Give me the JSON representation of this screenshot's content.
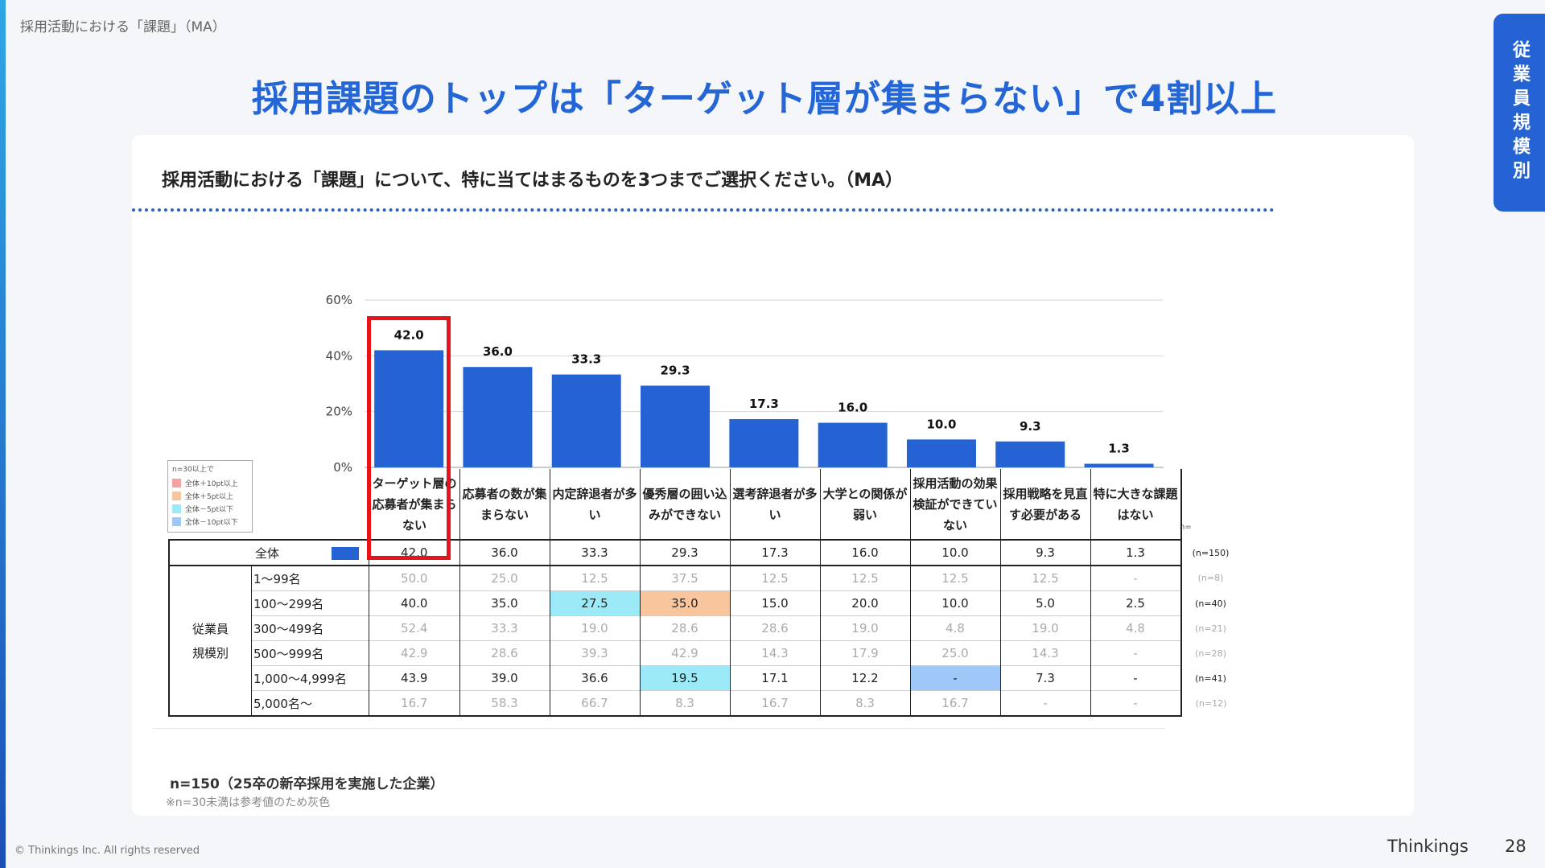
{
  "breadcrumb": "採用活動における「課題」（MA）",
  "title": "採用課題のトップは「ターゲット層が集まらない」で4割以上",
  "side_tab": "従業員規模別",
  "question": "採用活動における「課題」について、特に当てはまるものを3つまでご選択ください。（MA）",
  "legend": {
    "title": "n=30以上で",
    "items": [
      {
        "label": "全体＋10pt以上",
        "color": "#f4a3a3"
      },
      {
        "label": "全体＋5pt以上",
        "color": "#f9c59c"
      },
      {
        "label": "全体－5pt以下",
        "color": "#9ceaf7"
      },
      {
        "label": "全体－10pt以下",
        "color": "#9fc7f7"
      }
    ]
  },
  "colors": {
    "bar": "#2563d4",
    "highlight": "#e8121a",
    "title": "#2466d6"
  },
  "table": {
    "n_header": "n=",
    "total_label": "全体",
    "total_n": "(n=150)",
    "group_label_1": "従業員",
    "group_label_2": "規模別",
    "rows": [
      {
        "label": "1〜99名",
        "n": "(n=8)",
        "gray": true,
        "values": [
          "50.0",
          "25.0",
          "12.5",
          "37.5",
          "12.5",
          "12.5",
          "12.5",
          "12.5",
          "-"
        ],
        "hl": [
          "",
          "",
          "",
          "",
          "",
          "",
          "",
          "",
          ""
        ]
      },
      {
        "label": "100〜299名",
        "n": "(n=40)",
        "gray": false,
        "values": [
          "40.0",
          "35.0",
          "27.5",
          "35.0",
          "15.0",
          "20.0",
          "10.0",
          "5.0",
          "2.5"
        ],
        "hl": [
          "",
          "",
          "cyan",
          "orange",
          "",
          "",
          "",
          "",
          ""
        ]
      },
      {
        "label": "300〜499名",
        "n": "(n=21)",
        "gray": true,
        "values": [
          "52.4",
          "33.3",
          "19.0",
          "28.6",
          "28.6",
          "19.0",
          "4.8",
          "19.0",
          "4.8"
        ],
        "hl": [
          "",
          "",
          "",
          "",
          "",
          "",
          "",
          "",
          ""
        ]
      },
      {
        "label": "500〜999名",
        "n": "(n=28)",
        "gray": true,
        "values": [
          "42.9",
          "28.6",
          "39.3",
          "42.9",
          "14.3",
          "17.9",
          "25.0",
          "14.3",
          "-"
        ],
        "hl": [
          "",
          "",
          "",
          "",
          "",
          "",
          "",
          "",
          ""
        ]
      },
      {
        "label": "1,000〜4,999名",
        "n": "(n=41)",
        "gray": false,
        "values": [
          "43.9",
          "39.0",
          "36.6",
          "19.5",
          "17.1",
          "12.2",
          "-",
          "7.3",
          "-"
        ],
        "hl": [
          "",
          "",
          "",
          "cyan",
          "",
          "",
          "blue",
          "",
          ""
        ]
      },
      {
        "label": "5,000名〜",
        "n": "(n=12)",
        "gray": true,
        "values": [
          "16.7",
          "58.3",
          "66.7",
          "8.3",
          "16.7",
          "8.3",
          "16.7",
          "-",
          "-"
        ],
        "hl": [
          "",
          "",
          "",
          "",
          "",
          "",
          "",
          "",
          ""
        ]
      }
    ]
  },
  "chart_data": {
    "type": "bar",
    "categories": [
      "ターゲット層の応募者が集まらない",
      "応募者の数が集まらない",
      "内定辞退者が多い",
      "優秀層の囲い込みができない",
      "選考辞退者が多い",
      "大学との関係が弱い",
      "採用活動の効果検証ができていない",
      "採用戦略を見直す必要がある",
      "特に大きな課題はない"
    ],
    "values": [
      42.0,
      36.0,
      33.3,
      29.3,
      17.3,
      16.0,
      10.0,
      9.3,
      1.3
    ],
    "value_labels": [
      "42.0",
      "36.0",
      "33.3",
      "29.3",
      "17.3",
      "16.0",
      "10.0",
      "9.3",
      "1.3"
    ],
    "ylim": [
      0,
      60
    ],
    "yticks": [
      "0%",
      "20%",
      "40%",
      "60%"
    ],
    "ytick_values": [
      0,
      20,
      40,
      60
    ],
    "grid": true,
    "highlighted_category": "ターゲット層の応募者が集まらない"
  },
  "sample_note": "n=150（25卒の新卒採用を実施した企業）",
  "gray_note": "※n=30未満は参考値のため灰色",
  "copyright": "© Thinkings Inc. All rights reserved",
  "brand": "Thinkings",
  "page_number": "28"
}
